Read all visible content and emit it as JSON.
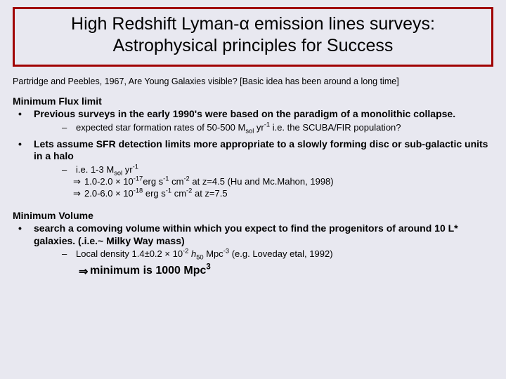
{
  "colors": {
    "border": "#a00000",
    "background": "#e8e8f0",
    "text": "#000000"
  },
  "title": {
    "line1": "High Redshift Lyman-α emission lines surveys:",
    "line2": "Astrophysical principles for Success",
    "fontsize": 25
  },
  "reference": "Partridge and Peebles, 1967, Are Young Galaxies visible? [Basic idea has been around a long time]",
  "section1": {
    "head": "Minimum Flux limit",
    "bullet1": "Previous surveys in the early 1990's were based on the paradigm of a monolithic collapse.",
    "sub1_prefix": "expected star formation rates of 50-500 M",
    "sub1_sol": "sol",
    "sub1_yr": " yr",
    "sub1_exp": "-1",
    "sub1_suffix": "  i.e. the SCUBA/FIR population?",
    "bullet2": "Lets assume SFR detection limits more appropriate to a slowly forming disc or sub-galactic units in a halo",
    "sub2_prefix": "i.e. 1-3 M",
    "sub2_sol": "sol",
    "sub2_yr": " yr",
    "sub2_exp": "-1",
    "imply1_a": "1.0-2.0 × 10",
    "imply1_b": "-17",
    "imply1_c": "erg s",
    "imply1_d": "-1",
    "imply1_e": " cm",
    "imply1_f": "-2",
    "imply1_g": "  at z=4.5 (Hu and Mc.Mahon, 1998)",
    "imply2_a": "2.0-6.0 × 10",
    "imply2_b": "-18",
    "imply2_c": " erg s",
    "imply2_d": "-1",
    "imply2_e": " cm",
    "imply2_f": "-2",
    "imply2_g": " at z=7.5"
  },
  "section2": {
    "head": "Minimum Volume",
    "bullet1": "search a comoving volume within which you expect to find the progenitors of around 10 L* galaxies. (.i.e.~ Milky Way mass)",
    "sub1_a": "Local density 1.4±0.2 × 10",
    "sub1_b": "-2",
    "sub1_c": " h",
    "sub1_d": "50",
    "sub1_e": " Mpc",
    "sub1_f": "-3",
    "sub1_g": " (e.g. Loveday etal, 1992)",
    "final_a": "minimum is 1000 Mpc",
    "final_b": "3"
  }
}
